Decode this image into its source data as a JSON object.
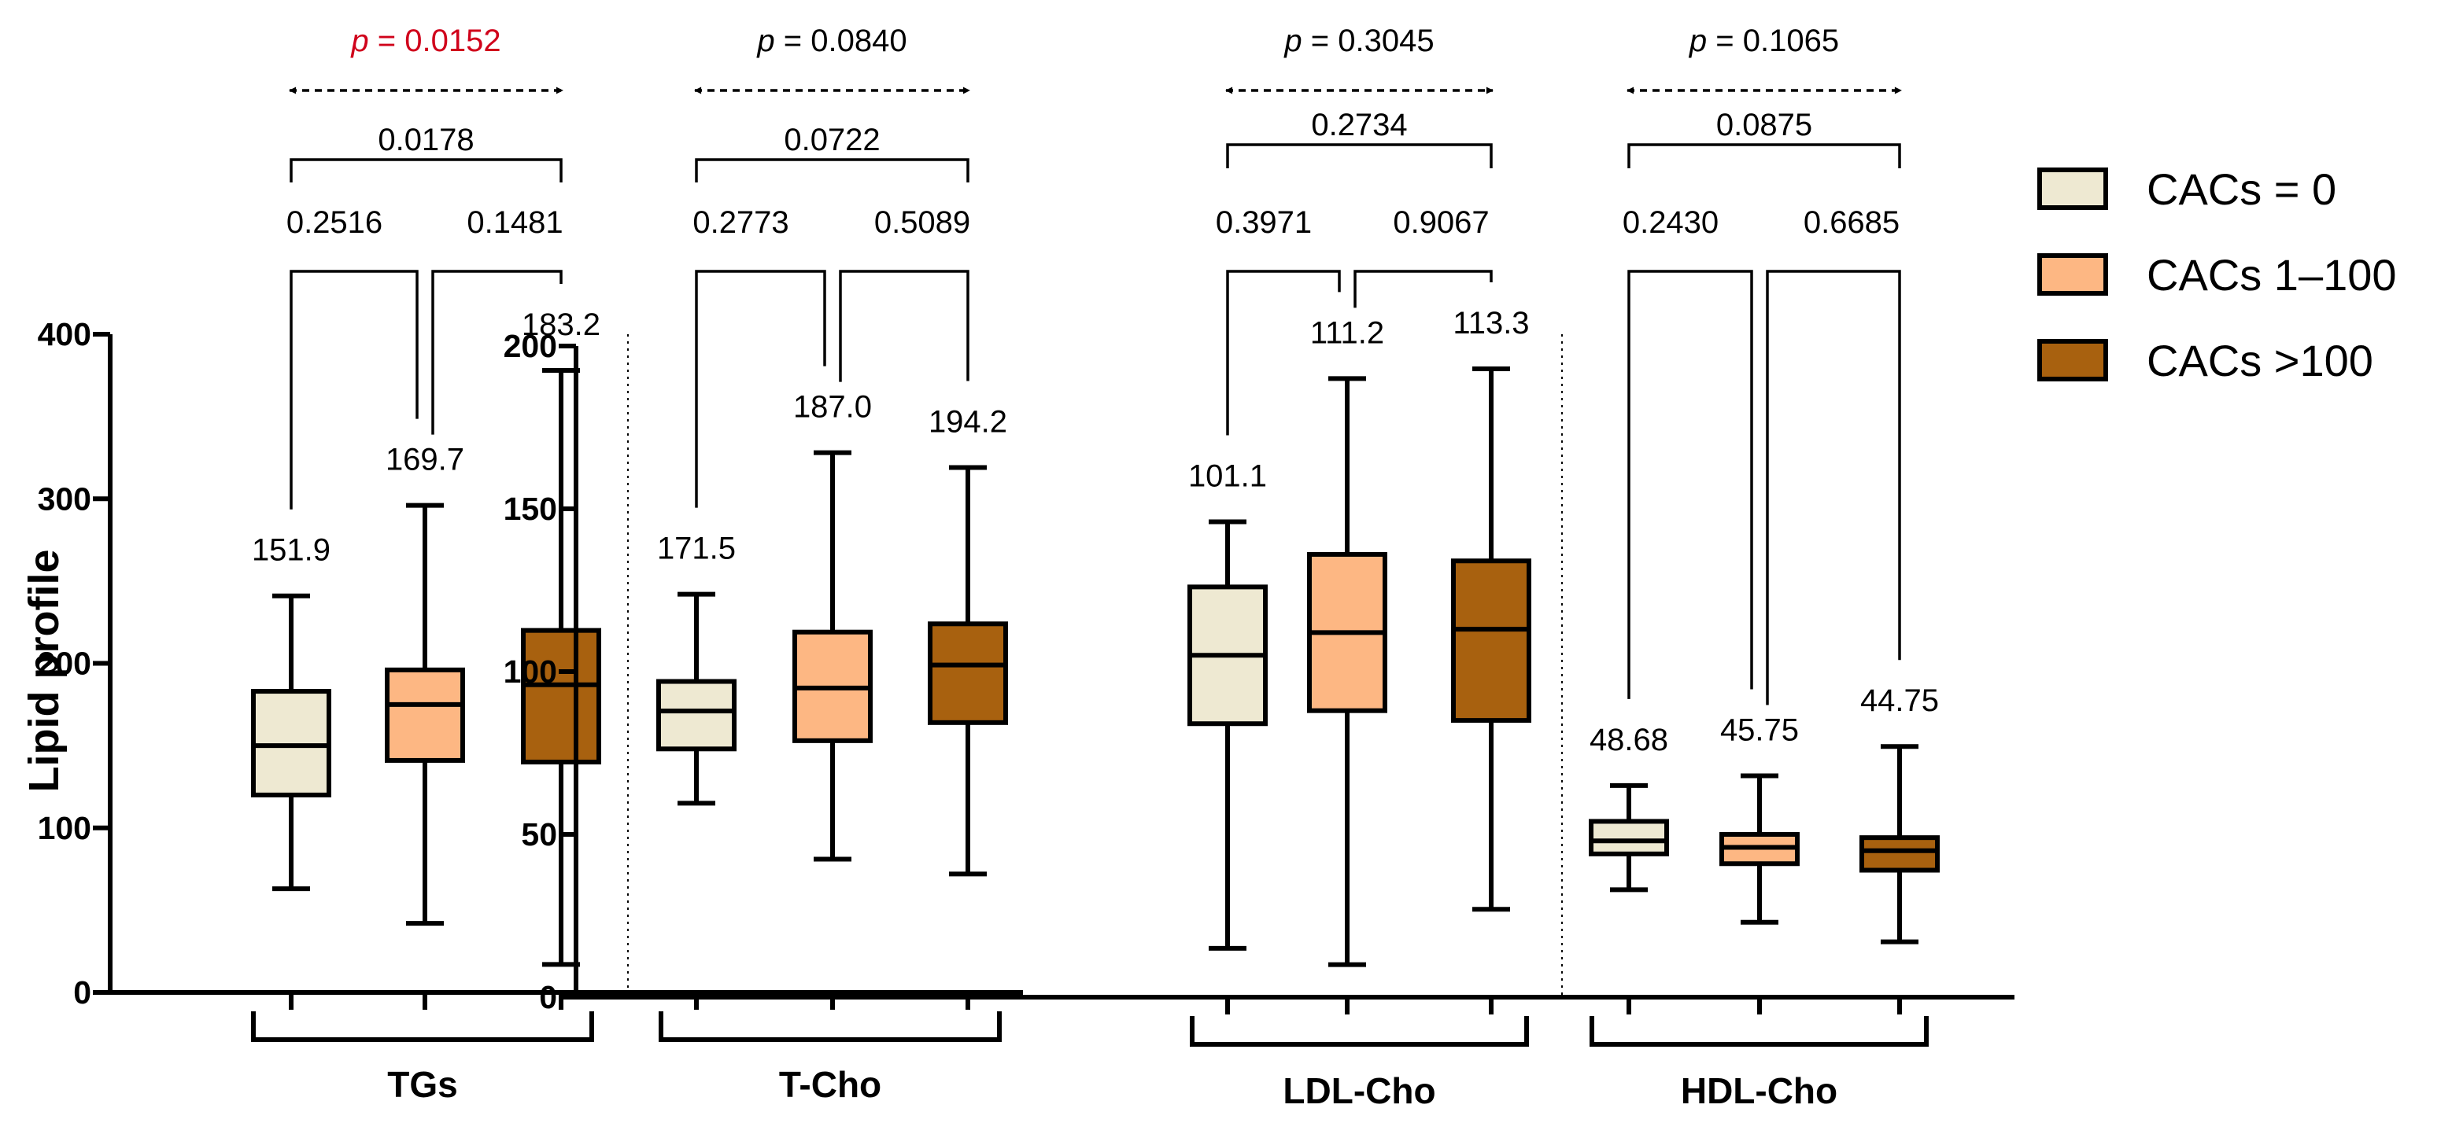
{
  "chart_data": {
    "type": "box",
    "ylabel": "Lipid profile",
    "legend": [
      {
        "label": "CACs = 0",
        "color": "#EEE9D2"
      },
      {
        "label": "CACs 1–100",
        "color": "#FDB783"
      },
      {
        "label": "CACs >100",
        "color": "#A8610F"
      }
    ],
    "panels": [
      {
        "name": "left",
        "ylim": [
          0,
          400
        ],
        "yticks": [
          "0",
          "100",
          "200",
          "300",
          "400"
        ],
        "groups": [
          {
            "label": "TGs",
            "p_overall": "p = 0.0152",
            "p_overall_color": "#D0021B",
            "pairwise": {
              "g1_g3": "0.0178",
              "g1_g2": "0.2516",
              "g2_g3": "0.1481"
            },
            "boxes": [
              {
                "min": 63,
                "q1": 120,
                "median": 150,
                "q3": 183,
                "max": 241,
                "mean_label": "151.9"
              },
              {
                "min": 42,
                "q1": 141,
                "median": 175,
                "q3": 196,
                "max": 296,
                "mean_label": "169.7"
              },
              {
                "min": 17,
                "q1": 140,
                "median": 187,
                "q3": 220,
                "max": 378,
                "mean_label": "183.2"
              }
            ]
          },
          {
            "label": "T-Cho",
            "p_overall": "p = 0.0840",
            "p_overall_color": "#000000",
            "pairwise": {
              "g1_g3": "0.0722",
              "g1_g2": "0.2773",
              "g2_g3": "0.5089"
            },
            "boxes": [
              {
                "min": 115,
                "q1": 148,
                "median": 171,
                "q3": 189,
                "max": 242,
                "mean_label": "171.5"
              },
              {
                "min": 81,
                "q1": 153,
                "median": 185,
                "q3": 219,
                "max": 328,
                "mean_label": "187.0"
              },
              {
                "min": 72,
                "q1": 164,
                "median": 199,
                "q3": 224,
                "max": 319,
                "mean_label": "194.2"
              }
            ]
          }
        ]
      },
      {
        "name": "right",
        "ylim": [
          0,
          200
        ],
        "yticks": [
          "0",
          "50",
          "100",
          "150",
          "200"
        ],
        "groups": [
          {
            "label": "LDL-Cho",
            "p_overall": "p = 0.3045",
            "p_overall_color": "#000000",
            "pairwise": {
              "g1_g3": "0.2734",
              "g1_g2": "0.3971",
              "g2_g3": "0.9067"
            },
            "boxes": [
              {
                "min": 15,
                "q1": 84,
                "median": 105,
                "q3": 126,
                "max": 146,
                "mean_label": "101.1"
              },
              {
                "min": 10,
                "q1": 88,
                "median": 112,
                "q3": 136,
                "max": 190,
                "mean_label": "111.2"
              },
              {
                "min": 27,
                "q1": 85,
                "median": 113,
                "q3": 134,
                "max": 193,
                "mean_label": "113.3"
              }
            ]
          },
          {
            "label": "HDL-Cho",
            "p_overall": "p = 0.1065",
            "p_overall_color": "#000000",
            "pairwise": {
              "g1_g3": "0.0875",
              "g1_g2": "0.2430",
              "g2_g3": "0.6685"
            },
            "boxes": [
              {
                "min": 33,
                "q1": 44,
                "median": 48,
                "q3": 54,
                "max": 65,
                "mean_label": "48.68"
              },
              {
                "min": 23,
                "q1": 41,
                "median": 46,
                "q3": 50,
                "max": 68,
                "mean_label": "45.75"
              },
              {
                "min": 17,
                "q1": 39,
                "median": 45,
                "q3": 49,
                "max": 77,
                "mean_label": "44.75"
              }
            ]
          }
        ]
      }
    ]
  }
}
